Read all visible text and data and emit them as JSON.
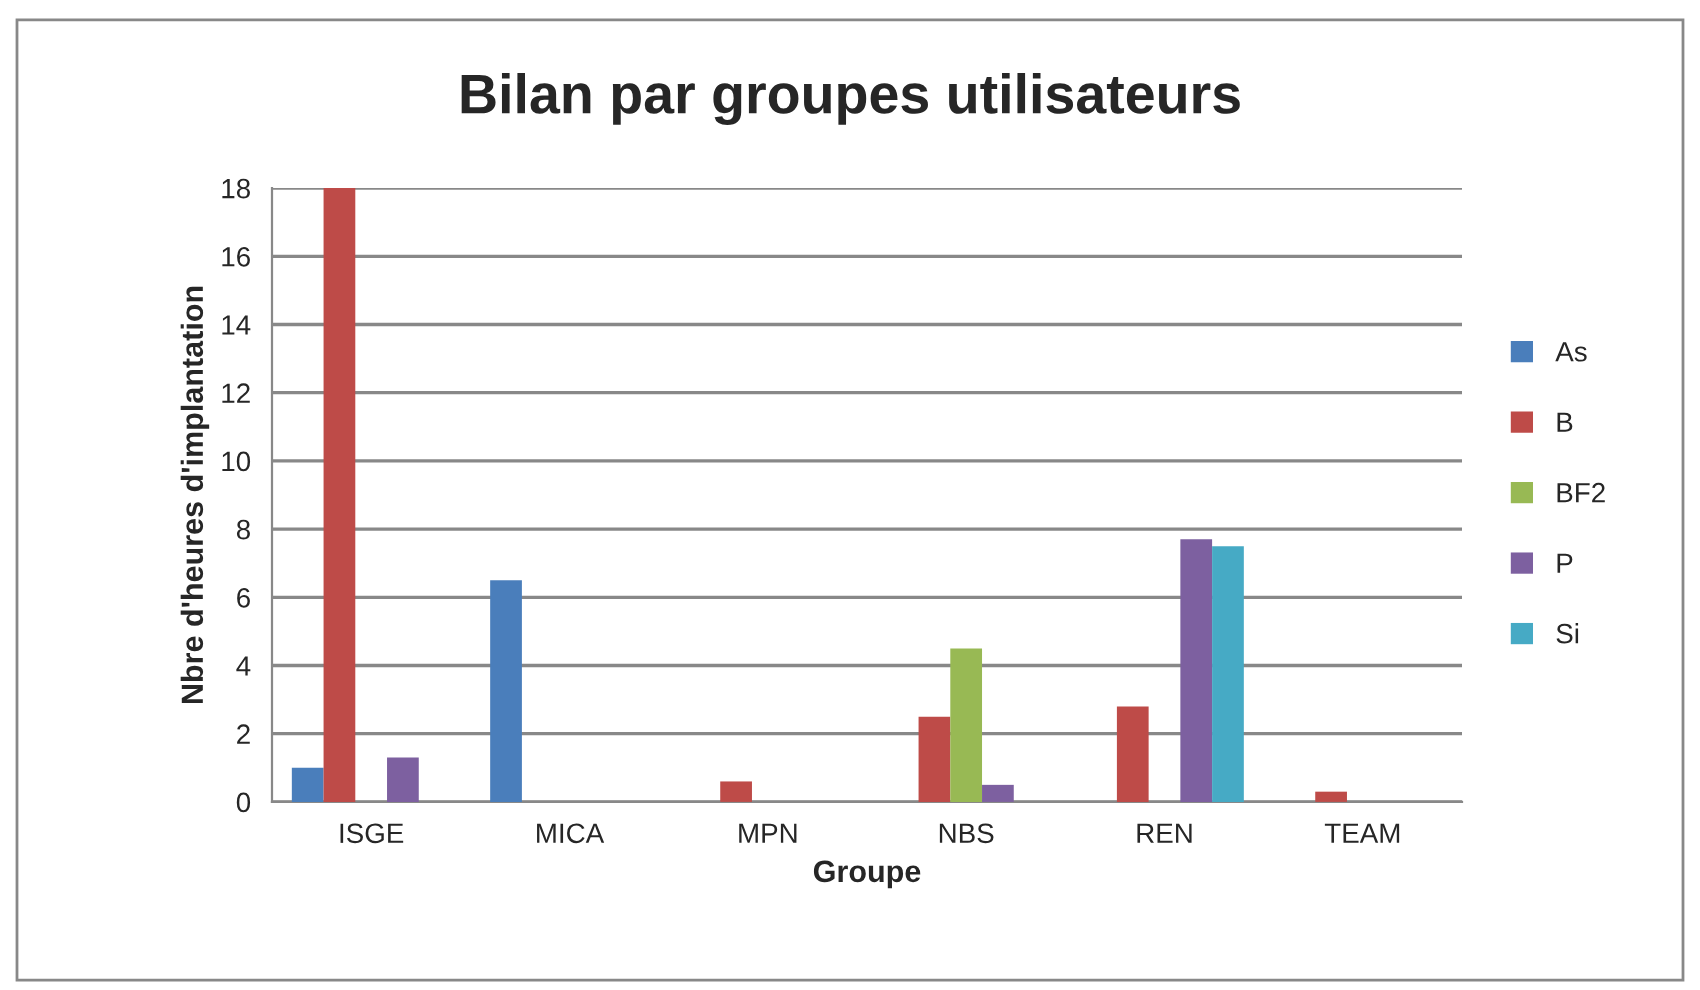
{
  "chart_data": {
    "type": "bar",
    "title": "Bilan par groupes utilisateurs",
    "xlabel": "Groupe",
    "ylabel": "Nbre d'heures d'implantation",
    "categories": [
      "ISGE",
      "MICA",
      "MPN",
      "NBS",
      "REN",
      "TEAM"
    ],
    "series": [
      {
        "name": "As",
        "color": "#4a7ebb",
        "values": [
          1,
          6.5,
          null,
          null,
          null,
          null
        ]
      },
      {
        "name": "B",
        "color": "#be4b48",
        "values": [
          18,
          null,
          0.6,
          2.5,
          2.8,
          0.3
        ]
      },
      {
        "name": "BF2",
        "color": "#98b954",
        "values": [
          null,
          null,
          null,
          4.5,
          null,
          null
        ]
      },
      {
        "name": "P",
        "color": "#7d60a0",
        "values": [
          1.3,
          null,
          null,
          0.5,
          7.7,
          null
        ]
      },
      {
        "name": "Si",
        "color": "#46aac5",
        "values": [
          null,
          null,
          null,
          null,
          7.5,
          null
        ]
      }
    ],
    "ylim": [
      0,
      18
    ],
    "yticks": [
      0,
      2,
      4,
      6,
      8,
      10,
      12,
      14,
      16,
      18
    ],
    "grid": "y",
    "legend": "right"
  }
}
